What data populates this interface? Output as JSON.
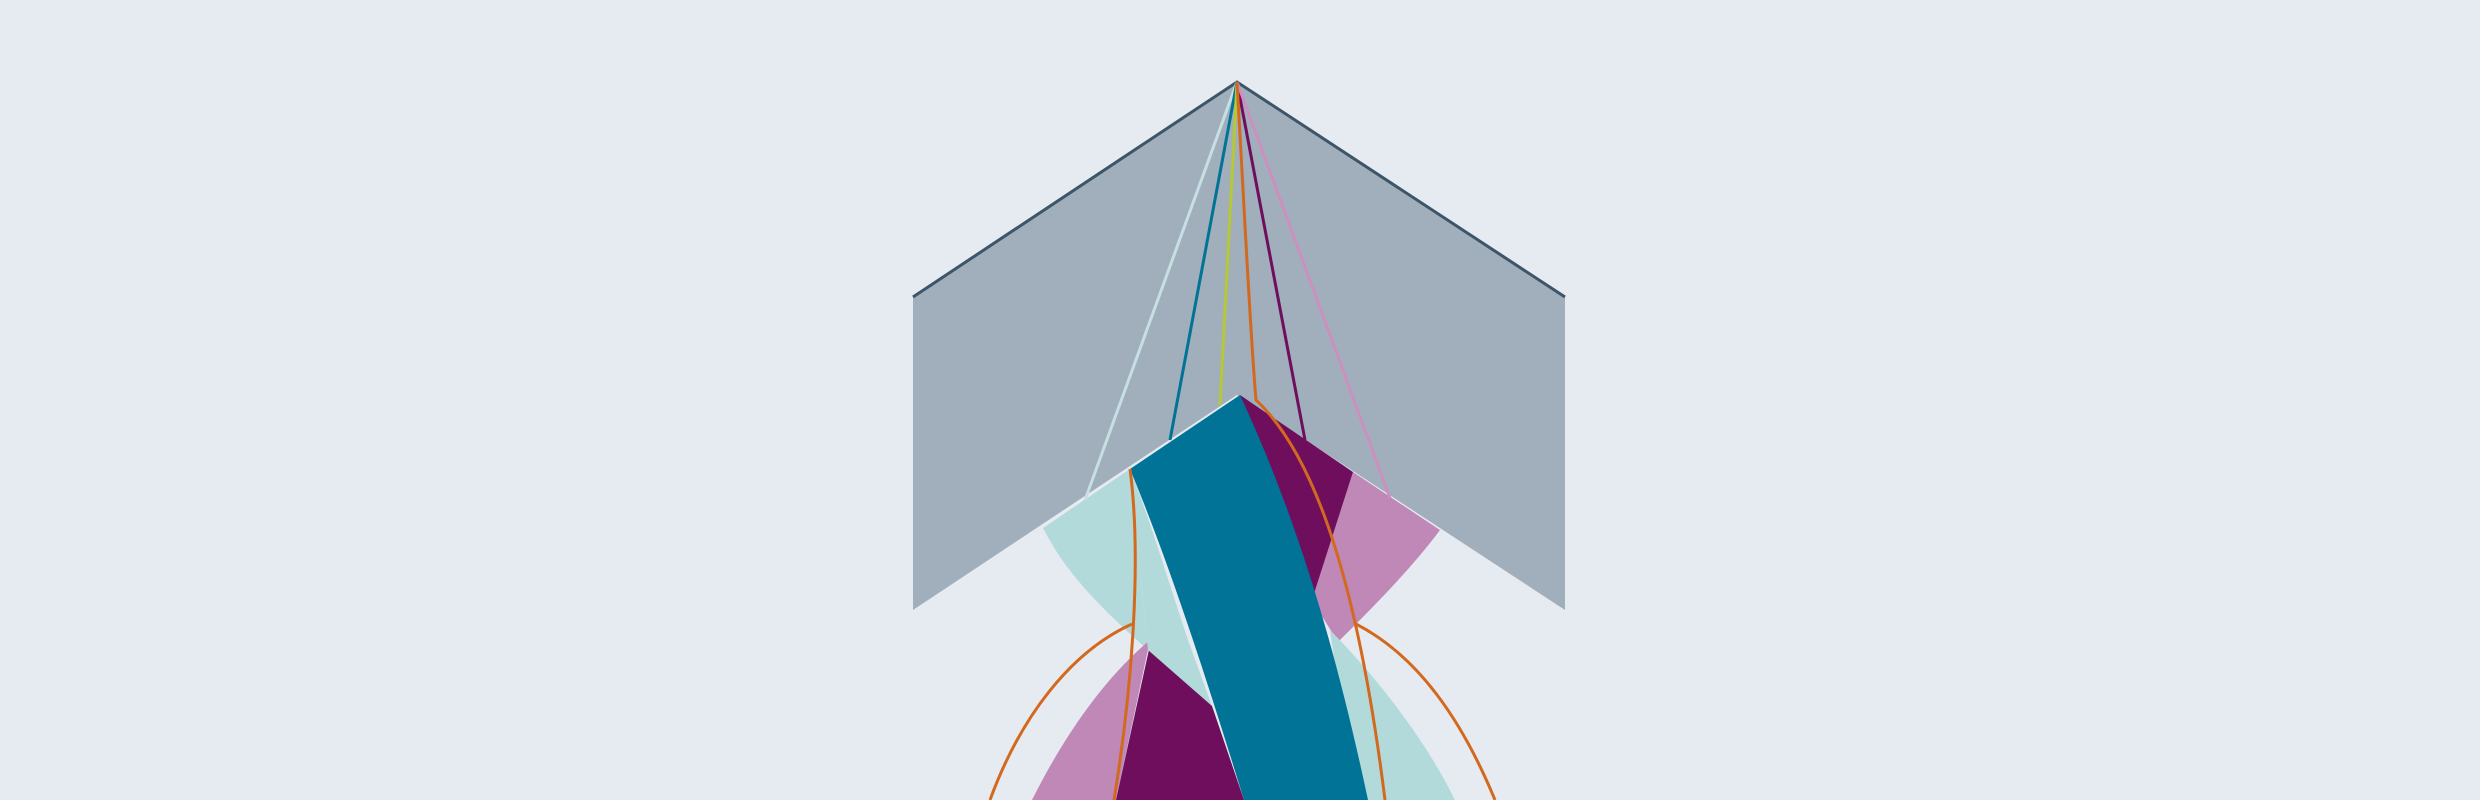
{
  "colors": {
    "background": "#e6ebf2",
    "chevron_fill": "#a0afbb",
    "chevron_edge": "#3d5568",
    "light_teal": "#b3dada",
    "teal": "#007396",
    "purple": "#6e0e5c",
    "pink": "#bf88b6",
    "orange": "#d2691e",
    "yellow_green": "#b5c836",
    "ray_light": "#c6dfe3",
    "ray_pink": "#cd8fc0",
    "ray_orange": "#d97d30"
  }
}
